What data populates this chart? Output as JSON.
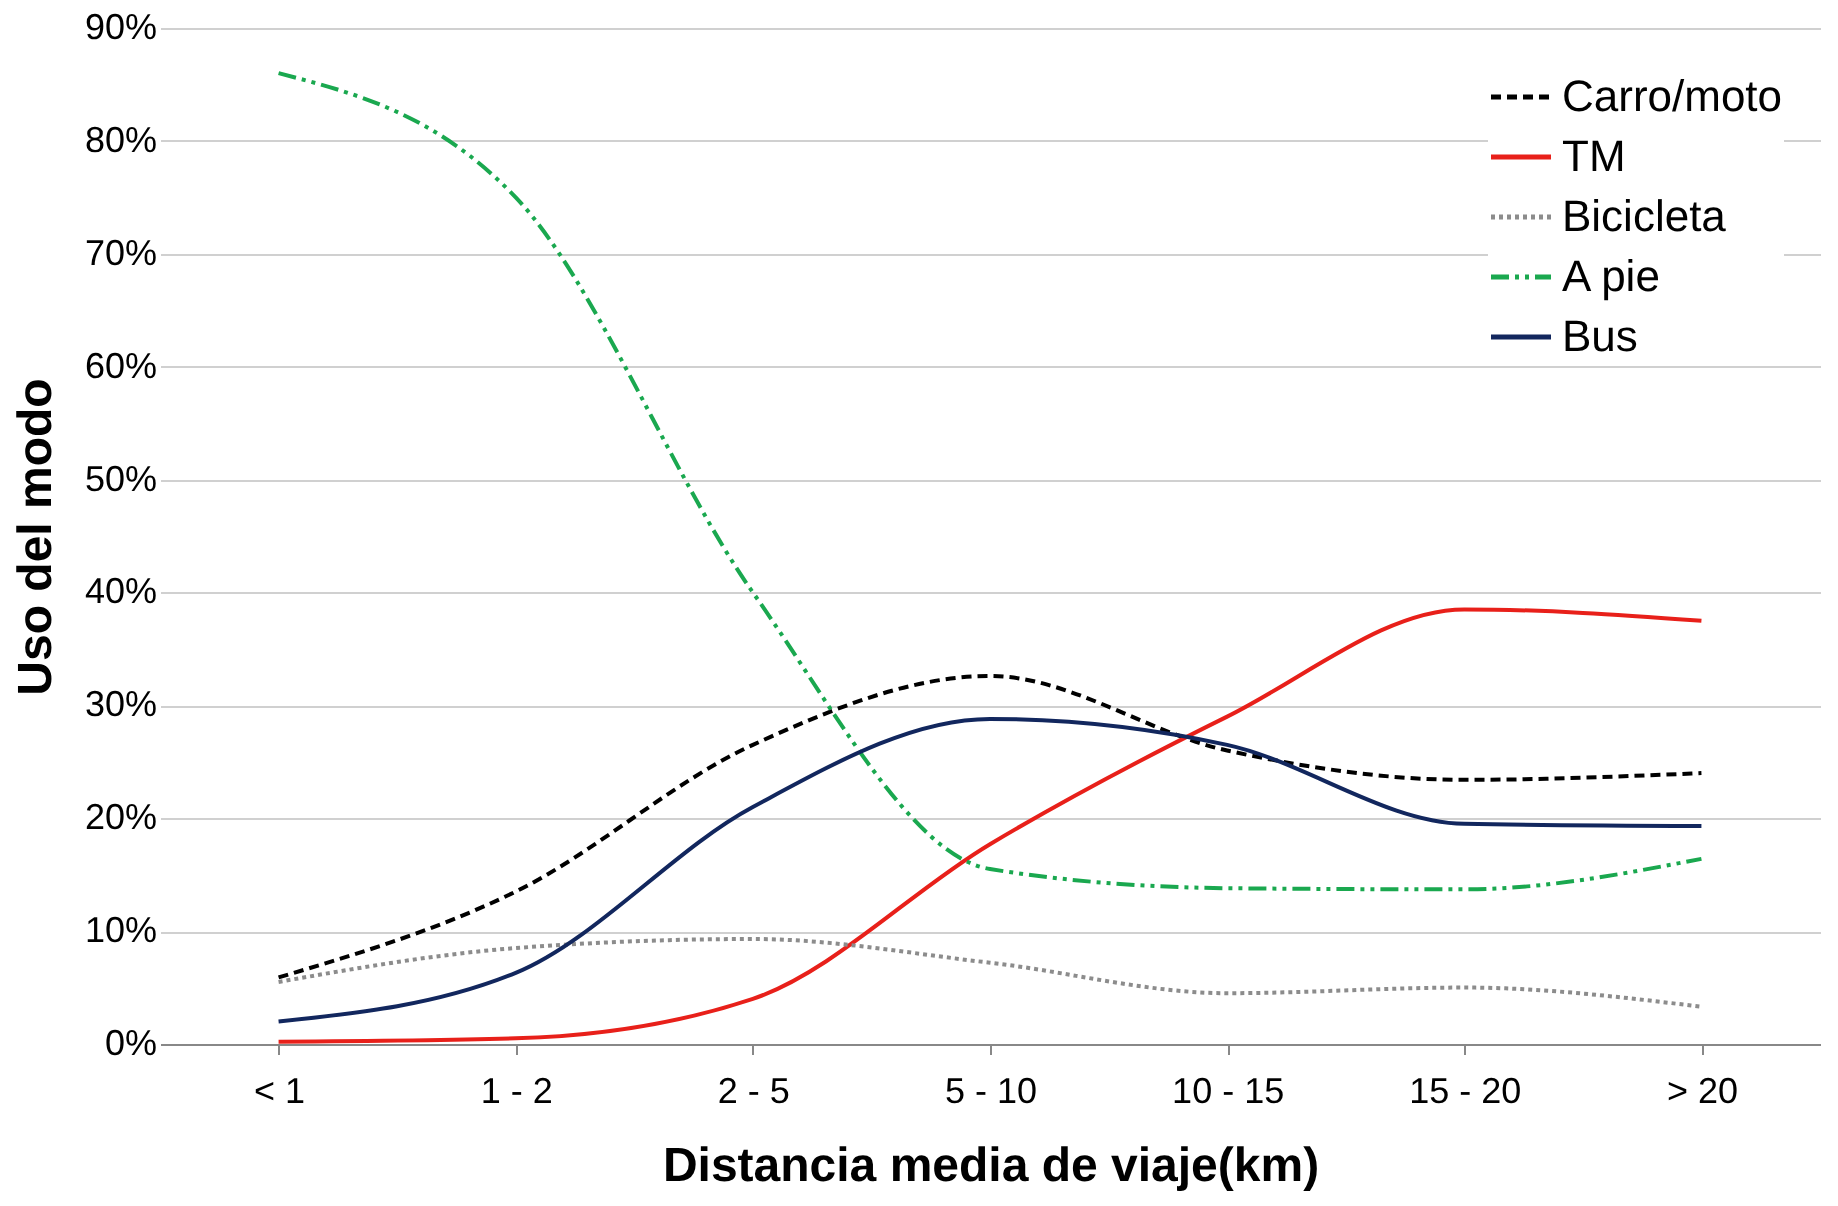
{
  "chart_data": {
    "type": "line",
    "xlabel": "Distancia media de viaje(km)",
    "ylabel": "Uso del modo",
    "categories": [
      "< 1",
      "1 - 2",
      "2 - 5",
      "5 - 10",
      "10 - 15",
      "15 - 20",
      "> 20"
    ],
    "series": [
      {
        "name": "Carro/moto",
        "color": "#000000",
        "line_style": "dashed",
        "values": [
          5.9,
          13.5,
          26.5,
          32.6,
          26,
          23.4,
          24
        ]
      },
      {
        "name": "TM",
        "color": "#e8201a",
        "line_style": "solid",
        "values": [
          0.2,
          0.5,
          4,
          17.7,
          29,
          38.5,
          37.5
        ]
      },
      {
        "name": "Bicicleta",
        "color": "#8c8c8c",
        "line_style": "dotted",
        "values": [
          5.5,
          8.5,
          9.3,
          7.2,
          4.5,
          5,
          3.3
        ]
      },
      {
        "name": "A pie",
        "color": "#1aa84f",
        "line_style": "dashdot",
        "values": [
          86,
          75,
          40,
          15.5,
          13.8,
          13.7,
          16.4
        ]
      },
      {
        "name": "Bus",
        "color": "#12275e",
        "line_style": "solid",
        "values": [
          2,
          6.3,
          21,
          28.8,
          26.5,
          19.5,
          19.3
        ]
      }
    ],
    "ylim": [
      0,
      90
    ],
    "yticks": [
      {
        "value": 0,
        "label": "0%"
      },
      {
        "value": 10,
        "label": "10%"
      },
      {
        "value": 20,
        "label": "20%"
      },
      {
        "value": 30,
        "label": "30%"
      },
      {
        "value": 40,
        "label": "40%"
      },
      {
        "value": 50,
        "label": "50%"
      },
      {
        "value": 60,
        "label": "60%"
      },
      {
        "value": 70,
        "label": "70%"
      },
      {
        "value": 80,
        "label": "80%"
      },
      {
        "value": 90,
        "label": "90%"
      }
    ],
    "grid": "y",
    "legend": "top right",
    "marker": "none"
  }
}
